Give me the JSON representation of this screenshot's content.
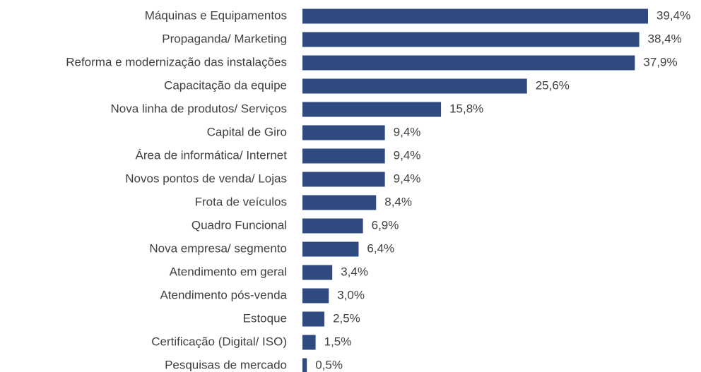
{
  "chart_data": {
    "type": "bar",
    "orientation": "horizontal",
    "categories": [
      "Máquinas e Equipamentos",
      "Propaganda/ Marketing",
      "Reforma e modernização das instalações",
      "Capacitação da equipe",
      "Nova linha de produtos/ Serviços",
      "Capital de Giro",
      "Área de informática/ Internet",
      "Novos pontos de venda/ Lojas",
      "Frota de veículos",
      "Quadro Funcional",
      "Nova empresa/ segmento",
      "Atendimento em geral",
      "Atendimento pós-venda",
      "Estoque",
      "Certificação (Digital/ ISO)",
      "Pesquisas de mercado"
    ],
    "values": [
      39.4,
      38.4,
      37.9,
      25.6,
      15.8,
      9.4,
      9.4,
      9.4,
      8.4,
      6.9,
      6.4,
      3.4,
      3.0,
      2.5,
      1.5,
      0.5
    ],
    "value_labels": [
      "39,4%",
      "38,4%",
      "37,9%",
      "25,6%",
      "15,8%",
      "9,4%",
      "9,4%",
      "9,4%",
      "8,4%",
      "6,9%",
      "6,4%",
      "3,4%",
      "3,0%",
      "2,5%",
      "1,5%",
      "0,5%"
    ],
    "color": "#2f4a7f"
  }
}
